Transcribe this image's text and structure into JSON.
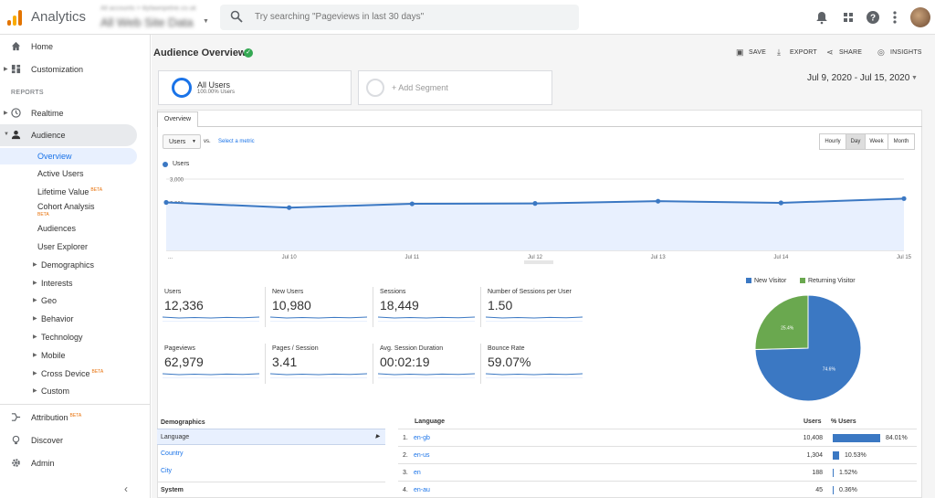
{
  "app": {
    "title": "Analytics",
    "account_sub": "All accounts > lilyfawnpetrie.co.uk",
    "account_name": "All Web Site Data"
  },
  "search": {
    "placeholder": "Try searching \"Pageviews in last 30 days\""
  },
  "topbar_icons": [
    "bell-icon",
    "apps-icon",
    "help-icon",
    "more-icon"
  ],
  "sidebar": {
    "home": "Home",
    "customization": "Customization",
    "reports_label": "REPORTS",
    "realtime": "Realtime",
    "audience": "Audience",
    "audience_items": [
      {
        "label": "Overview"
      },
      {
        "label": "Active Users"
      },
      {
        "label": "Lifetime Value",
        "badge": "BETA"
      },
      {
        "label": "Cohort Analysis",
        "badge": "BETA"
      },
      {
        "label": "Audiences"
      },
      {
        "label": "User Explorer"
      }
    ],
    "audience_groups": [
      "Demographics",
      "Interests",
      "Geo",
      "Behavior",
      "Technology",
      "Mobile",
      "Cross Device",
      "Custom"
    ],
    "cross_device_badge": "BETA",
    "attribution": "Attribution",
    "attribution_badge": "BETA",
    "discover": "Discover",
    "admin": "Admin"
  },
  "page": {
    "title": "Audience Overview",
    "actions": {
      "save": "SAVE",
      "export": "EXPORT",
      "share": "SHARE",
      "insights": "INSIGHTS"
    },
    "segments": {
      "all_users": "All Users",
      "all_users_pct": "100.00% Users",
      "add_segment": "+ Add Segment"
    },
    "date_range": "Jul 9, 2020 - Jul 15, 2020",
    "tab": "Overview",
    "metric_select": "Users",
    "vs": "vs.",
    "select_metric": "Select a metric",
    "granularity": [
      "Hourly",
      "Day",
      "Week",
      "Month"
    ],
    "granularity_selected": "Day"
  },
  "chart_data": {
    "type": "line",
    "series": [
      {
        "name": "Users",
        "values": [
          2020,
          1800,
          1960,
          1975,
          2070,
          2000,
          2180
        ]
      }
    ],
    "x": [
      "Jul 9",
      "Jul 10",
      "Jul 11",
      "Jul 12",
      "Jul 13",
      "Jul 14",
      "Jul 15"
    ],
    "xtick_labels": [
      "...",
      "Jul 10",
      "Jul 11",
      "Jul 12",
      "Jul 13",
      "Jul 14",
      "Jul 15"
    ],
    "yticks": [
      "1,000",
      "2,000",
      "3,000"
    ],
    "ylim": [
      0,
      3000
    ],
    "color": "#3b78c3",
    "fill": "#e8f0fe",
    "grid": true
  },
  "kpis": [
    {
      "label": "Users",
      "value": "12,336"
    },
    {
      "label": "New Users",
      "value": "10,980"
    },
    {
      "label": "Sessions",
      "value": "18,449"
    },
    {
      "label": "Number of Sessions per User",
      "value": "1.50"
    },
    {
      "label": "Pageviews",
      "value": "62,979"
    },
    {
      "label": "Pages / Session",
      "value": "3.41"
    },
    {
      "label": "Avg. Session Duration",
      "value": "00:02:19"
    },
    {
      "label": "Bounce Rate",
      "value": "59.07%"
    }
  ],
  "pie": {
    "legend": [
      {
        "name": "New Visitor",
        "color": "#3b78c3"
      },
      {
        "name": "Returning Visitor",
        "color": "#6aa84f"
      }
    ],
    "slices": [
      {
        "name": "New Visitor",
        "value": 74.6,
        "label": "74.6%"
      },
      {
        "name": "Returning Visitor",
        "value": 25.4,
        "label": "25.4%"
      }
    ]
  },
  "demographics": {
    "heading": "Demographics",
    "items": [
      "Language",
      "Country",
      "City"
    ],
    "selected": "Language",
    "system_heading": "System"
  },
  "table": {
    "col_language": "Language",
    "col_users": "Users",
    "col_pct": "% Users",
    "rows": [
      {
        "n": "1.",
        "lang": "en-gb",
        "users": "10,408",
        "pct": "84.01%",
        "frac": 0.8401
      },
      {
        "n": "2.",
        "lang": "en-us",
        "users": "1,304",
        "pct": "10.53%",
        "frac": 0.1053
      },
      {
        "n": "3.",
        "lang": "en",
        "users": "188",
        "pct": "1.52%",
        "frac": 0.0152
      },
      {
        "n": "4.",
        "lang": "en-au",
        "users": "45",
        "pct": "0.36%",
        "frac": 0.0036
      }
    ]
  }
}
